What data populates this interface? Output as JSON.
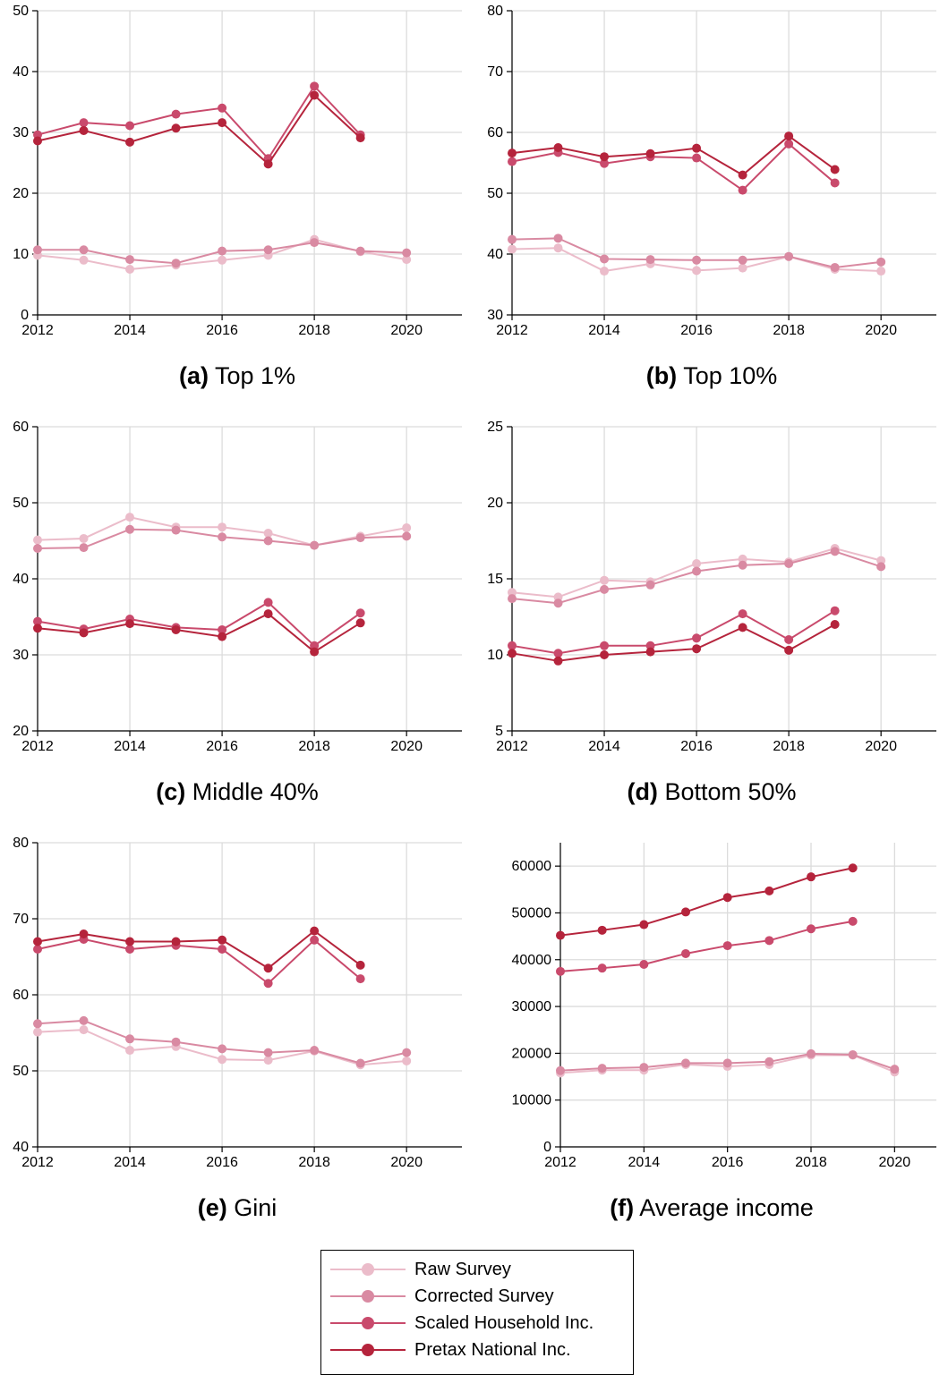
{
  "series_styles": [
    {
      "name": "Raw Survey",
      "color": "#ebbcca"
    },
    {
      "name": "Corrected Survey",
      "color": "#d98aa2"
    },
    {
      "name": "Scaled Household Inc.",
      "color": "#c94a6c"
    },
    {
      "name": "Pretax National Inc.",
      "color": "#b5243c"
    }
  ],
  "legend": {
    "items": [
      "Raw Survey",
      "Corrected Survey",
      "Scaled Household Inc.",
      "Pretax National Inc."
    ]
  },
  "chart_data": [
    {
      "type": "line",
      "letter": "(a)",
      "title": "Top 1%",
      "x": [
        2012,
        2013,
        2014,
        2015,
        2016,
        2017,
        2018,
        2019,
        2020
      ],
      "xticks": [
        2012,
        2014,
        2016,
        2018,
        2020
      ],
      "xlim": [
        2012,
        2021.2
      ],
      "ylim": [
        0,
        50
      ],
      "yticks": [
        0,
        10,
        20,
        30,
        40,
        50
      ],
      "series": [
        {
          "name": "Raw Survey",
          "values": [
            9.8,
            9.0,
            7.5,
            8.2,
            9.0,
            9.8,
            12.4,
            10.4,
            9.1
          ]
        },
        {
          "name": "Corrected Survey",
          "values": [
            10.7,
            10.7,
            9.1,
            8.5,
            10.5,
            10.7,
            11.9,
            10.5,
            10.2
          ]
        },
        {
          "name": "Scaled Household Inc.",
          "values": [
            29.6,
            31.6,
            31.1,
            33.0,
            34.0,
            25.7,
            37.6,
            29.6,
            null
          ]
        },
        {
          "name": "Pretax National Inc.",
          "values": [
            28.6,
            30.3,
            28.4,
            30.7,
            31.6,
            24.8,
            36.1,
            29.1,
            null
          ]
        }
      ]
    },
    {
      "type": "line",
      "letter": "(b)",
      "title": "Top 10%",
      "x": [
        2012,
        2013,
        2014,
        2015,
        2016,
        2017,
        2018,
        2019,
        2020
      ],
      "xticks": [
        2012,
        2014,
        2016,
        2018,
        2020
      ],
      "xlim": [
        2012,
        2021.2
      ],
      "ylim": [
        30,
        80
      ],
      "yticks": [
        30,
        40,
        50,
        60,
        70,
        80
      ],
      "series": [
        {
          "name": "Raw Survey",
          "values": [
            40.8,
            41.0,
            37.2,
            38.4,
            37.3,
            37.7,
            39.6,
            37.5,
            37.2
          ]
        },
        {
          "name": "Corrected Survey",
          "values": [
            42.4,
            42.6,
            39.2,
            39.1,
            39.0,
            39.0,
            39.6,
            37.8,
            38.7
          ]
        },
        {
          "name": "Scaled Household Inc.",
          "values": [
            55.2,
            56.7,
            54.9,
            56.0,
            55.8,
            50.5,
            58.1,
            51.7,
            null
          ]
        },
        {
          "name": "Pretax National Inc.",
          "values": [
            56.6,
            57.5,
            56.0,
            56.5,
            57.4,
            53.0,
            59.4,
            53.9,
            null
          ]
        }
      ]
    },
    {
      "type": "line",
      "letter": "(c)",
      "title": "Middle 40%",
      "x": [
        2012,
        2013,
        2014,
        2015,
        2016,
        2017,
        2018,
        2019,
        2020
      ],
      "xticks": [
        2012,
        2014,
        2016,
        2018,
        2020
      ],
      "xlim": [
        2012,
        2021.2
      ],
      "ylim": [
        20,
        60
      ],
      "yticks": [
        20,
        30,
        40,
        50,
        60
      ],
      "series": [
        {
          "name": "Raw Survey",
          "values": [
            45.1,
            45.3,
            48.1,
            46.8,
            46.8,
            46.0,
            44.4,
            45.6,
            46.7
          ]
        },
        {
          "name": "Corrected Survey",
          "values": [
            44.0,
            44.1,
            46.5,
            46.4,
            45.5,
            45.0,
            44.4,
            45.4,
            45.6
          ]
        },
        {
          "name": "Scaled Household Inc.",
          "values": [
            34.4,
            33.4,
            34.7,
            33.6,
            33.3,
            36.9,
            31.2,
            35.5,
            null
          ]
        },
        {
          "name": "Pretax National Inc.",
          "values": [
            33.5,
            32.9,
            34.1,
            33.3,
            32.4,
            35.4,
            30.4,
            34.2,
            null
          ]
        }
      ]
    },
    {
      "type": "line",
      "letter": "(d)",
      "title": "Bottom 50%",
      "x": [
        2012,
        2013,
        2014,
        2015,
        2016,
        2017,
        2018,
        2019,
        2020
      ],
      "xticks": [
        2012,
        2014,
        2016,
        2018,
        2020
      ],
      "xlim": [
        2012,
        2021.2
      ],
      "ylim": [
        5,
        25
      ],
      "yticks": [
        5,
        10,
        15,
        20,
        25
      ],
      "series": [
        {
          "name": "Raw Survey",
          "values": [
            14.1,
            13.8,
            14.9,
            14.8,
            16.0,
            16.3,
            16.1,
            17.0,
            16.2
          ]
        },
        {
          "name": "Corrected Survey",
          "values": [
            13.7,
            13.4,
            14.3,
            14.6,
            15.5,
            15.9,
            16.0,
            16.8,
            15.8
          ]
        },
        {
          "name": "Scaled Household Inc.",
          "values": [
            10.6,
            10.1,
            10.6,
            10.6,
            11.1,
            12.7,
            11.0,
            12.9,
            null
          ]
        },
        {
          "name": "Pretax National Inc.",
          "values": [
            10.1,
            9.6,
            10.0,
            10.2,
            10.4,
            11.8,
            10.3,
            12.0,
            null
          ]
        }
      ]
    },
    {
      "type": "line",
      "letter": "(e)",
      "title": "Gini",
      "x": [
        2012,
        2013,
        2014,
        2015,
        2016,
        2017,
        2018,
        2019,
        2020
      ],
      "xticks": [
        2012,
        2014,
        2016,
        2018,
        2020
      ],
      "xlim": [
        2012,
        2021.2
      ],
      "ylim": [
        40,
        80
      ],
      "yticks": [
        40,
        50,
        60,
        70,
        80
      ],
      "series": [
        {
          "name": "Raw Survey",
          "values": [
            55.1,
            55.4,
            52.7,
            53.2,
            51.5,
            51.4,
            52.6,
            50.8,
            51.3
          ]
        },
        {
          "name": "Corrected Survey",
          "values": [
            56.2,
            56.6,
            54.2,
            53.8,
            52.9,
            52.4,
            52.7,
            51.0,
            52.4
          ]
        },
        {
          "name": "Scaled Household Inc.",
          "values": [
            66.0,
            67.3,
            66.0,
            66.5,
            66.0,
            61.5,
            67.2,
            62.1,
            null
          ]
        },
        {
          "name": "Pretax National Inc.",
          "values": [
            67.0,
            68.0,
            67.0,
            67.0,
            67.2,
            63.5,
            68.4,
            63.9,
            null
          ]
        }
      ]
    },
    {
      "type": "line",
      "letter": "(f)",
      "title": "Average income",
      "x": [
        2012,
        2013,
        2014,
        2015,
        2016,
        2017,
        2018,
        2019,
        2020
      ],
      "xticks": [
        2012,
        2014,
        2016,
        2018,
        2020
      ],
      "xlim": [
        2012,
        2021
      ],
      "ylim": [
        0,
        65000
      ],
      "yticks": [
        0,
        10000,
        20000,
        30000,
        40000,
        50000,
        60000
      ],
      "series": [
        {
          "name": "Raw Survey",
          "values": [
            15800,
            16400,
            16400,
            17600,
            17200,
            17600,
            19600,
            19600,
            16000
          ]
        },
        {
          "name": "Corrected Survey",
          "values": [
            16300,
            16800,
            17000,
            17900,
            17900,
            18200,
            19900,
            19700,
            16600
          ]
        },
        {
          "name": "Scaled Household Inc.",
          "values": [
            37500,
            38200,
            39000,
            41300,
            43000,
            44100,
            46600,
            48200,
            null
          ]
        },
        {
          "name": "Pretax National Inc.",
          "values": [
            45200,
            46300,
            47500,
            50200,
            53300,
            54700,
            57700,
            59600,
            null
          ]
        }
      ]
    }
  ]
}
